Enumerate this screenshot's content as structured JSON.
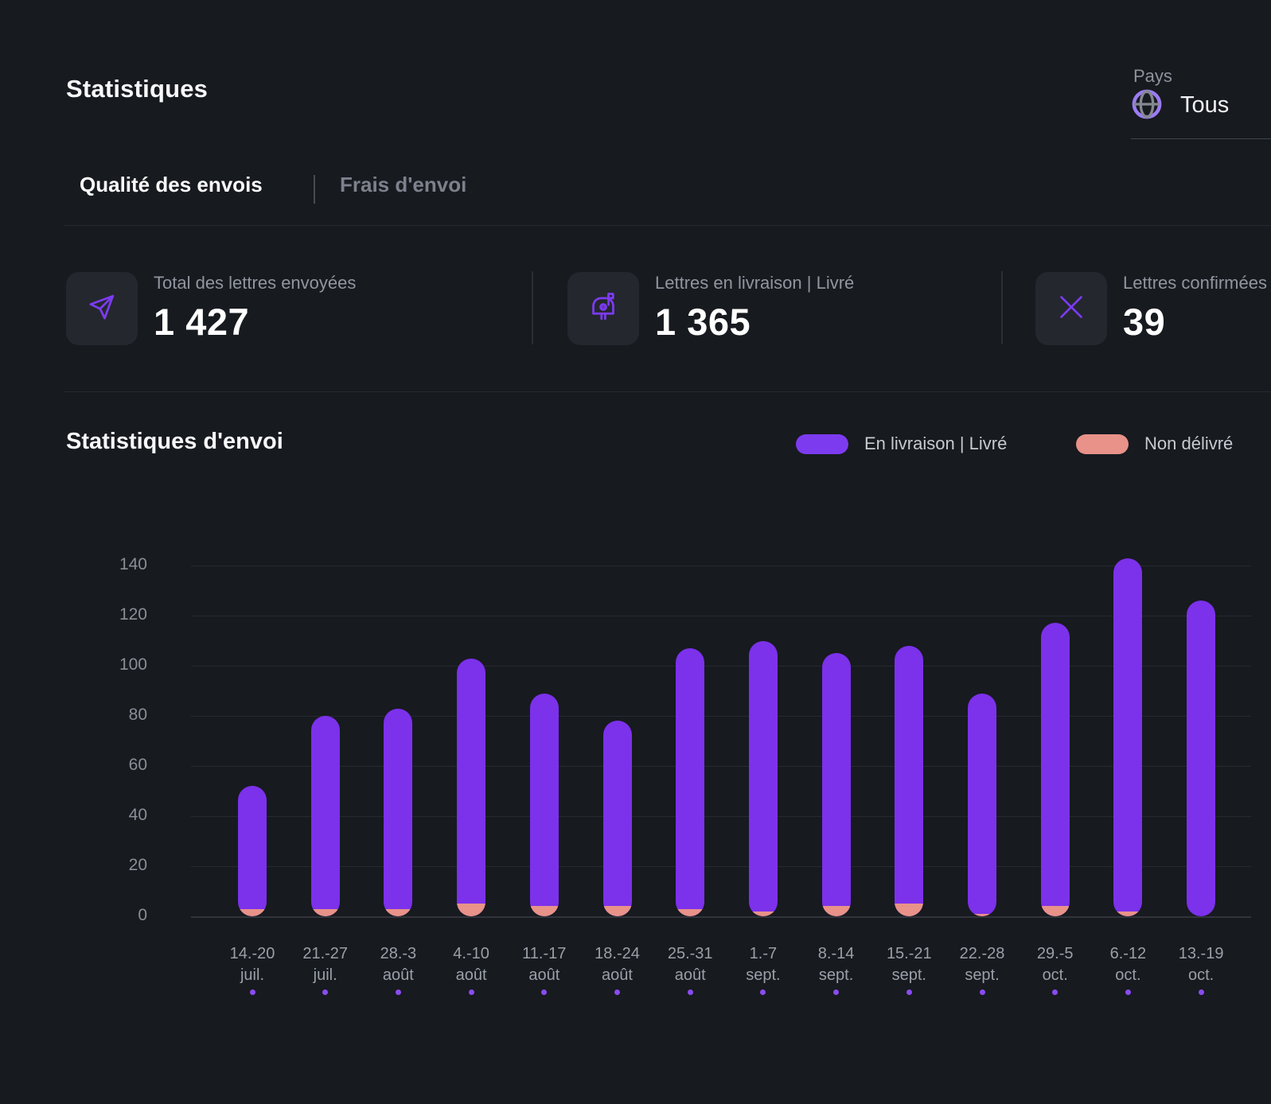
{
  "header": {
    "title": "Statistiques",
    "country_select": {
      "label": "Pays",
      "value": "Tous",
      "icon": "globe-icon"
    }
  },
  "tabs": {
    "items": [
      {
        "label": "Qualité des envois",
        "active": true
      },
      {
        "label": "Frais d'envoi",
        "active": false
      }
    ]
  },
  "stats": {
    "cards": [
      {
        "icon": "paper-plane-icon",
        "label": "Total des lettres envoyées",
        "value": "1 427"
      },
      {
        "icon": "mailbox-icon",
        "label": "Lettres en livraison | Livré",
        "value": "1 365"
      },
      {
        "icon": "x-mark-icon",
        "label": "Lettres confirmées",
        "value": "39"
      }
    ]
  },
  "section": {
    "title": "Statistiques d'envoi"
  },
  "legend": [
    {
      "label": "En livraison | Livré",
      "color": "#7D3BF0"
    },
    {
      "label": "Non délivré",
      "color": "#E89289"
    }
  ],
  "colors": {
    "background": "#171A1F",
    "accent_purple": "#7C31EB",
    "salmon": "#E89289",
    "x_axis_dot": "#8A4BF0",
    "icon_purple": "#7C3BF0"
  },
  "chart_data": {
    "type": "bar",
    "stacked": true,
    "title": "Statistiques d'envoi",
    "categories": [
      "14.-20 juil.",
      "21.-27 juil.",
      "28.-3 août",
      "4.-10 août",
      "11.-17 août",
      "18.-24 août",
      "25.-31 août",
      "1.-7 sept.",
      "8.-14 sept.",
      "15.-21 sept.",
      "22.-28 sept.",
      "29.-5 oct.",
      "6.-12 oct.",
      "13.-19 oct."
    ],
    "series": [
      {
        "name": "En livraison | Livré",
        "color": "#7C31EB",
        "values": [
          49,
          77,
          80,
          98,
          85,
          74,
          104,
          108,
          101,
          103,
          88,
          113,
          141,
          126
        ]
      },
      {
        "name": "Non délivré",
        "color": "#E89289",
        "values": [
          3,
          3,
          3,
          5,
          4,
          4,
          3,
          2,
          4,
          5,
          1,
          4,
          2,
          0
        ]
      }
    ],
    "totals": [
      52,
      80,
      83,
      103,
      89,
      78,
      107,
      110,
      105,
      108,
      89,
      117,
      143,
      126
    ],
    "xlabel": "",
    "ylabel": "",
    "ylim": [
      0,
      140
    ],
    "yticks": [
      0,
      20,
      40,
      60,
      80,
      100,
      120,
      140
    ],
    "grid": "horizontal",
    "legend_position": "top-right"
  }
}
